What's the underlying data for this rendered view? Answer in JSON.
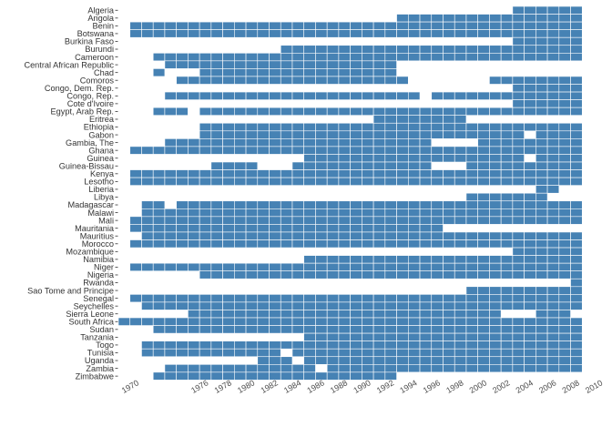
{
  "chart_data": {
    "type": "heatmap",
    "title": "",
    "xlabel": "",
    "ylabel": "",
    "color": "#4682b4",
    "year_range": [
      1970,
      2010
    ],
    "x_ticks": [
      "1970",
      "1976",
      "1978",
      "1980",
      "1982",
      "1984",
      "1986",
      "1988",
      "1990",
      "1992",
      "1994",
      "1996",
      "1998",
      "2000",
      "2002",
      "2004",
      "2006",
      "2008",
      "2010"
    ],
    "countries": [
      {
        "name": "Algeria",
        "years": [
          [
            2004,
            2009
          ]
        ]
      },
      {
        "name": "Angola",
        "years": [
          [
            1994,
            2009
          ]
        ]
      },
      {
        "name": "Benin",
        "years": [
          [
            1971,
            2009
          ]
        ]
      },
      {
        "name": "Botswana",
        "years": [
          [
            1971,
            2009
          ]
        ]
      },
      {
        "name": "Burkina Faso",
        "years": [
          [
            2004,
            2009
          ]
        ]
      },
      {
        "name": "Burundi",
        "years": [
          [
            1984,
            2009
          ]
        ]
      },
      {
        "name": "Cameroon",
        "years": [
          [
            1973,
            2009
          ]
        ]
      },
      {
        "name": "Central African Republic",
        "years": [
          [
            1974,
            1993
          ]
        ]
      },
      {
        "name": "Chad",
        "years": [
          [
            1973,
            1973
          ],
          [
            1977,
            1993
          ]
        ]
      },
      {
        "name": "Comoros",
        "years": [
          [
            1975,
            1994
          ],
          [
            2002,
            2009
          ]
        ]
      },
      {
        "name": "Congo, Dem. Rep.",
        "years": [
          [
            2004,
            2009
          ]
        ]
      },
      {
        "name": "Congo, Rep.",
        "years": [
          [
            1974,
            1995
          ],
          [
            1997,
            2009
          ]
        ]
      },
      {
        "name": "Cote d'Ivoire",
        "years": [
          [
            2004,
            2009
          ]
        ]
      },
      {
        "name": "Egypt, Arab Rep.",
        "years": [
          [
            1973,
            1975
          ],
          [
            1977,
            2009
          ]
        ]
      },
      {
        "name": "Eritrea",
        "years": [
          [
            1992,
            1999
          ]
        ]
      },
      {
        "name": "Ethiopia",
        "years": [
          [
            1977,
            2009
          ]
        ]
      },
      {
        "name": "Gabon",
        "years": [
          [
            1977,
            2004
          ],
          [
            2006,
            2009
          ]
        ]
      },
      {
        "name": "Gambia, The",
        "years": [
          [
            1974,
            1996
          ],
          [
            2001,
            2009
          ]
        ]
      },
      {
        "name": "Ghana",
        "years": [
          [
            1971,
            2009
          ]
        ]
      },
      {
        "name": "Guinea",
        "years": [
          [
            1986,
            2004
          ],
          [
            2006,
            2009
          ]
        ]
      },
      {
        "name": "Guinea-Bissau",
        "years": [
          [
            1978,
            1981
          ],
          [
            1985,
            1996
          ],
          [
            2000,
            2009
          ]
        ]
      },
      {
        "name": "Kenya",
        "years": [
          [
            1971,
            2009
          ]
        ]
      },
      {
        "name": "Lesotho",
        "years": [
          [
            1971,
            2009
          ]
        ]
      },
      {
        "name": "Liberia",
        "years": [
          [
            2006,
            2007
          ]
        ]
      },
      {
        "name": "Libya",
        "years": [
          [
            2000,
            2006
          ]
        ]
      },
      {
        "name": "Madagascar",
        "years": [
          [
            1972,
            1973
          ],
          [
            1975,
            2009
          ]
        ]
      },
      {
        "name": "Malawi",
        "years": [
          [
            1972,
            2009
          ]
        ]
      },
      {
        "name": "Mali",
        "years": [
          [
            1971,
            2009
          ]
        ]
      },
      {
        "name": "Mauritania",
        "years": [
          [
            1971,
            1997
          ]
        ]
      },
      {
        "name": "Mauritius",
        "years": [
          [
            1972,
            2009
          ]
        ]
      },
      {
        "name": "Morocco",
        "years": [
          [
            1971,
            2009
          ]
        ]
      },
      {
        "name": "Mozambique",
        "years": [
          [
            2004,
            2009
          ]
        ]
      },
      {
        "name": "Namibia",
        "years": [
          [
            1986,
            2009
          ]
        ]
      },
      {
        "name": "Niger",
        "years": [
          [
            1971,
            2009
          ]
        ]
      },
      {
        "name": "Nigeria",
        "years": [
          [
            1977,
            2009
          ]
        ]
      },
      {
        "name": "Rwanda",
        "years": [
          [
            2009,
            2009
          ]
        ]
      },
      {
        "name": "Sao Tome and Principe",
        "years": [
          [
            2000,
            2009
          ]
        ]
      },
      {
        "name": "Senegal",
        "years": [
          [
            1971,
            2009
          ]
        ]
      },
      {
        "name": "Seychelles",
        "years": [
          [
            1972,
            2009
          ]
        ]
      },
      {
        "name": "Sierra Leone",
        "years": [
          [
            1976,
            2002
          ],
          [
            2006,
            2008
          ]
        ]
      },
      {
        "name": "South Africa",
        "years": [
          [
            1970,
            2009
          ]
        ]
      },
      {
        "name": "Sudan",
        "years": [
          [
            1973,
            2009
          ]
        ]
      },
      {
        "name": "Tanzania",
        "years": [
          [
            1986,
            2009
          ]
        ]
      },
      {
        "name": "Togo",
        "years": [
          [
            1972,
            2009
          ]
        ]
      },
      {
        "name": "Tunisia",
        "years": [
          [
            1972,
            1983
          ],
          [
            1985,
            2009
          ]
        ]
      },
      {
        "name": "Uganda",
        "years": [
          [
            1982,
            1984
          ],
          [
            1986,
            2009
          ]
        ]
      },
      {
        "name": "Zambia",
        "years": [
          [
            1974,
            1986
          ],
          [
            1988,
            2009
          ]
        ]
      },
      {
        "name": "Zimbabwe",
        "years": [
          [
            1973,
            1993
          ]
        ]
      }
    ]
  }
}
